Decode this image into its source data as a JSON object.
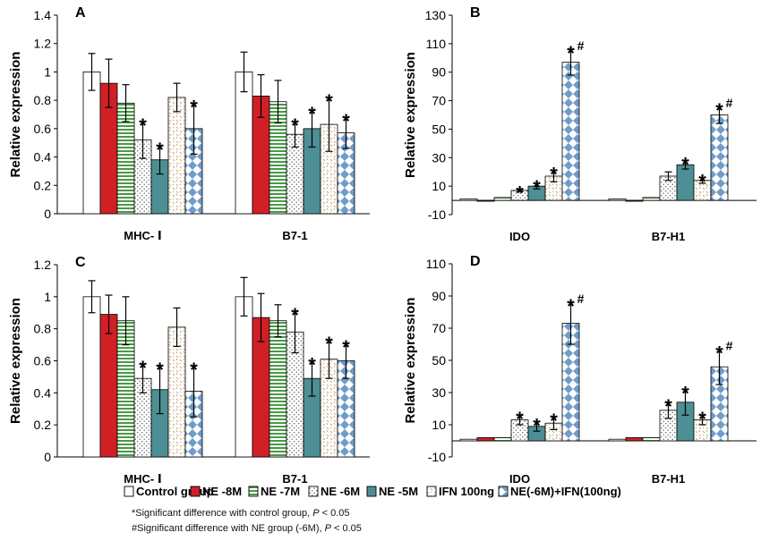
{
  "colors": {
    "control": "#ffffff",
    "ne8": "#d02026",
    "ne7": "#4a9a47",
    "ne6": "#ffffff",
    "ne5": "#4d8f94",
    "ifn": "#ffffff",
    "combo": "#6f9cc9"
  },
  "legend": [
    {
      "label": "Control group",
      "key": "control"
    },
    {
      "label": "NE -8M",
      "key": "ne8"
    },
    {
      "label": "NE -7M",
      "key": "ne7"
    },
    {
      "label": "NE -6M",
      "key": "ne6"
    },
    {
      "label": "NE -5M",
      "key": "ne5"
    },
    {
      "label": "IFN 100ng",
      "key": "ifn"
    },
    {
      "label": "NE(-6M)+IFN(100ng)",
      "key": "combo"
    }
  ],
  "notes": {
    "star": "*Significant difference with control group, ",
    "hash": "#Significant difference with NE group (-6M), ",
    "p": "P",
    "threshold": " < 0.05"
  },
  "chart_data": [
    {
      "panel": "A",
      "type": "bar",
      "ylabel": "Relative expression",
      "ylim": [
        0,
        1.4
      ],
      "yticks": [
        "0",
        "0.2",
        "0.4",
        "0.6",
        "0.8",
        "1",
        "1.2",
        "1.4"
      ],
      "categories": [
        "MHC- Ⅰ",
        "B7-1"
      ],
      "series": [
        {
          "name": "Control group",
          "values": [
            1.0,
            1.0
          ],
          "errors": [
            0.13,
            0.14
          ],
          "marks": [
            "",
            ""
          ]
        },
        {
          "name": "NE -8M",
          "values": [
            0.92,
            0.83
          ],
          "errors": [
            0.17,
            0.15
          ],
          "marks": [
            "",
            ""
          ]
        },
        {
          "name": "NE -7M",
          "values": [
            0.78,
            0.79
          ],
          "errors": [
            0.13,
            0.15
          ],
          "marks": [
            "",
            ""
          ]
        },
        {
          "name": "NE -6M",
          "values": [
            0.52,
            0.56
          ],
          "errors": [
            0.13,
            0.09
          ],
          "marks": [
            "*",
            "*"
          ]
        },
        {
          "name": "NE -5M",
          "values": [
            0.38,
            0.6
          ],
          "errors": [
            0.1,
            0.13
          ],
          "marks": [
            "*",
            "*"
          ]
        },
        {
          "name": "IFN 100ng",
          "values": [
            0.82,
            0.63
          ],
          "errors": [
            0.1,
            0.19
          ],
          "marks": [
            "",
            "*"
          ]
        },
        {
          "name": "NE(-6M)+IFN(100ng)",
          "values": [
            0.6,
            0.57
          ],
          "errors": [
            0.18,
            0.11
          ],
          "marks": [
            "*",
            "*"
          ]
        }
      ]
    },
    {
      "panel": "B",
      "type": "bar",
      "ylabel": "Relative expression",
      "ylim": [
        -10,
        130
      ],
      "yticks": [
        "-10",
        "10",
        "30",
        "50",
        "70",
        "90",
        "110",
        "130"
      ],
      "categories": [
        "IDO",
        "B7-H1"
      ],
      "series": [
        {
          "name": "Control group",
          "values": [
            1,
            1
          ],
          "errors": [
            0,
            0
          ],
          "marks": [
            "",
            ""
          ]
        },
        {
          "name": "NE -8M",
          "values": [
            0,
            0
          ],
          "errors": [
            0,
            0
          ],
          "marks": [
            "",
            ""
          ]
        },
        {
          "name": "NE -7M",
          "values": [
            2,
            2
          ],
          "errors": [
            0,
            0
          ],
          "marks": [
            "",
            ""
          ]
        },
        {
          "name": "NE -6M",
          "values": [
            7,
            17
          ],
          "errors": [
            1,
            3
          ],
          "marks": [
            "*",
            ""
          ]
        },
        {
          "name": "NE -5M",
          "values": [
            10,
            25
          ],
          "errors": [
            2,
            3
          ],
          "marks": [
            "*",
            "*"
          ]
        },
        {
          "name": "IFN 100ng",
          "values": [
            17,
            14
          ],
          "errors": [
            4,
            2
          ],
          "marks": [
            "*",
            "*"
          ]
        },
        {
          "name": "NE(-6M)+IFN(100ng)",
          "values": [
            97,
            60
          ],
          "errors": [
            9,
            6
          ],
          "marks": [
            "*#",
            "*#"
          ]
        }
      ]
    },
    {
      "panel": "C",
      "type": "bar",
      "ylabel": "Relative expression",
      "ylim": [
        0,
        1.2
      ],
      "yticks": [
        "0",
        "0.2",
        "0.4",
        "0.6",
        "0.8",
        "1",
        "1.2"
      ],
      "categories": [
        "MHC- Ⅰ",
        "B7-1"
      ],
      "series": [
        {
          "name": "Control group",
          "values": [
            1.0,
            1.0
          ],
          "errors": [
            0.1,
            0.12
          ],
          "marks": [
            "",
            ""
          ]
        },
        {
          "name": "NE -8M",
          "values": [
            0.89,
            0.87
          ],
          "errors": [
            0.12,
            0.15
          ],
          "marks": [
            "",
            ""
          ]
        },
        {
          "name": "NE -7M",
          "values": [
            0.85,
            0.85
          ],
          "errors": [
            0.15,
            0.1
          ],
          "marks": [
            "",
            ""
          ]
        },
        {
          "name": "NE -6M",
          "values": [
            0.49,
            0.78
          ],
          "errors": [
            0.09,
            0.13
          ],
          "marks": [
            "*",
            "*"
          ]
        },
        {
          "name": "NE -5M",
          "values": [
            0.42,
            0.49
          ],
          "errors": [
            0.15,
            0.11
          ],
          "marks": [
            "*",
            "*"
          ]
        },
        {
          "name": "IFN 100ng",
          "values": [
            0.81,
            0.61
          ],
          "errors": [
            0.12,
            0.12
          ],
          "marks": [
            "",
            "*"
          ]
        },
        {
          "name": "NE(-6M)+IFN(100ng)",
          "values": [
            0.41,
            0.6
          ],
          "errors": [
            0.16,
            0.11
          ],
          "marks": [
            "*",
            "*"
          ]
        }
      ]
    },
    {
      "panel": "D",
      "type": "bar",
      "ylabel": "Relative expression",
      "ylim": [
        -10,
        110
      ],
      "yticks": [
        "-10",
        "10",
        "30",
        "50",
        "70",
        "90",
        "110"
      ],
      "categories": [
        "IDO",
        "B7-H1"
      ],
      "series": [
        {
          "name": "Control group",
          "values": [
            1,
            1
          ],
          "errors": [
            0,
            0
          ],
          "marks": [
            "",
            ""
          ]
        },
        {
          "name": "NE -8M",
          "values": [
            2,
            2
          ],
          "errors": [
            0,
            0
          ],
          "marks": [
            "",
            ""
          ]
        },
        {
          "name": "NE -7M",
          "values": [
            2,
            2
          ],
          "errors": [
            0,
            0
          ],
          "marks": [
            "",
            ""
          ]
        },
        {
          "name": "NE -6M",
          "values": [
            13,
            19
          ],
          "errors": [
            3,
            5
          ],
          "marks": [
            "*",
            "*"
          ]
        },
        {
          "name": "NE -5M",
          "values": [
            9,
            24
          ],
          "errors": [
            3,
            8
          ],
          "marks": [
            "*",
            "*"
          ]
        },
        {
          "name": "IFN 100ng",
          "values": [
            11,
            13
          ],
          "errors": [
            4,
            3
          ],
          "marks": [
            "*",
            "*"
          ]
        },
        {
          "name": "NE(-6M)+IFN(100ng)",
          "values": [
            73,
            46
          ],
          "errors": [
            13,
            11
          ],
          "marks": [
            "*#",
            "*#"
          ]
        }
      ]
    }
  ]
}
